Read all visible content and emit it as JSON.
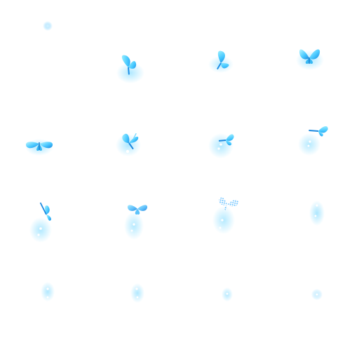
{
  "sprite_sheet": {
    "subject": "butterfly",
    "palette": {
      "wing_light": "#9ff2ff",
      "wing_mid": "#43c7ff",
      "wing_dark": "#1f8fe6",
      "glow": "#8fd8ff",
      "sparkle": "#ffffff"
    },
    "frames": [
      {
        "kind": "dot"
      },
      {
        "kind": "butterfly"
      },
      {
        "kind": "butterfly"
      },
      {
        "kind": "butterfly"
      },
      {
        "kind": "butterfly"
      },
      {
        "kind": "butterfly"
      },
      {
        "kind": "butterfly"
      },
      {
        "kind": "butterfly"
      },
      {
        "kind": "butterfly"
      },
      {
        "kind": "butterfly"
      },
      {
        "kind": "butterfly"
      },
      {
        "kind": "glow"
      },
      {
        "kind": "glow"
      },
      {
        "kind": "glow"
      },
      {
        "kind": "glow"
      },
      {
        "kind": "dot"
      }
    ]
  }
}
